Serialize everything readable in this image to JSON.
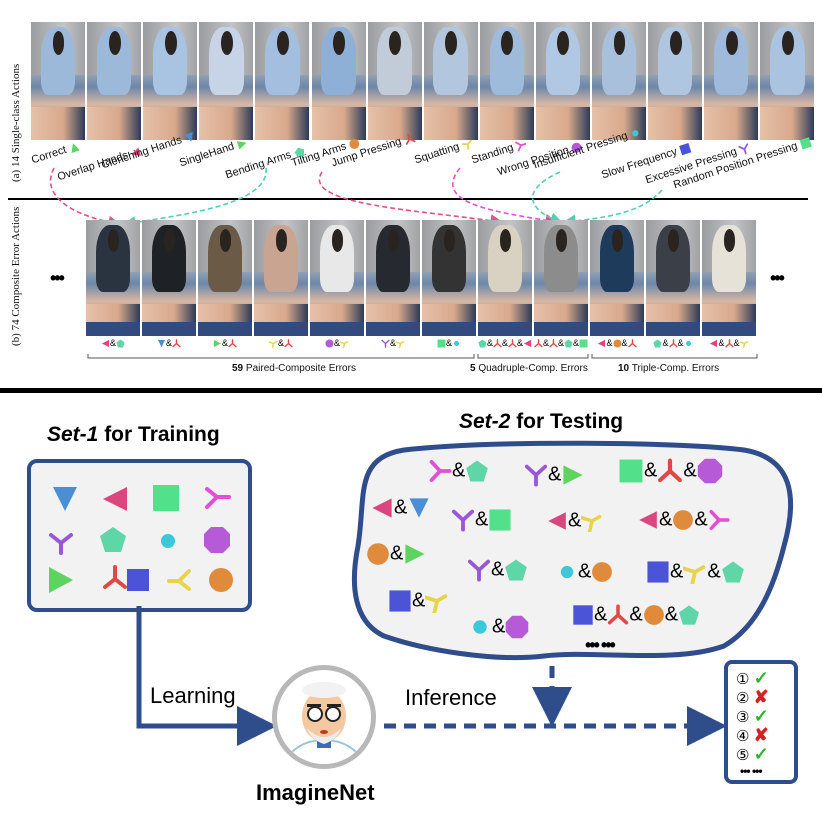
{
  "panel_a": {
    "label": "(a) 14 Single-class Actions",
    "classes": [
      {
        "label": "Correct",
        "icon": "green-triangle-up-icon"
      },
      {
        "label": "Overlap Hands",
        "icon": "pink-triangle-left-icon"
      },
      {
        "label": "Clenching Hands",
        "icon": "blue-triangle-down-icon"
      },
      {
        "label": "SingleHand",
        "icon": "green-triangle-right-icon"
      },
      {
        "label": "Bending Arms",
        "icon": "teal-pentagon-icon"
      },
      {
        "label": "Tilting Arms",
        "icon": "orange-circle-icon"
      },
      {
        "label": "Jump Pressing",
        "icon": "red-tripod-icon"
      },
      {
        "label": "Squatting",
        "icon": "yellow-tripod-icon"
      },
      {
        "label": "Standing",
        "icon": "magenta-tripod-icon"
      },
      {
        "label": "Wrong Position",
        "icon": "purple-circle-icon"
      },
      {
        "label": "Insufficient Pressing",
        "icon": "cyan-dot-icon"
      },
      {
        "label": "Slow Frequency",
        "icon": "blue-square-icon"
      },
      {
        "label": "Excessive Pressing",
        "icon": "violet-tripod-icon"
      },
      {
        "label": "Random Position Pressing",
        "icon": "green-square-icon"
      }
    ]
  },
  "panel_b": {
    "label": "(b) 74 Composite Error Actions",
    "ellipsis_left": "•••",
    "ellipsis_right": "•••",
    "amp": "&",
    "groups": [
      {
        "count": "59",
        "label": "Paired-Composite Errors"
      },
      {
        "count": "5",
        "label": "Quadruple-Comp. Errors"
      },
      {
        "count": "10",
        "label": "Triple-Comp. Errors"
      }
    ]
  },
  "set1": {
    "name": "Set-1",
    "rest": " for Training"
  },
  "set2": {
    "name": "Set-2",
    "rest": " for Testing",
    "amp": "&",
    "more": "••• •••"
  },
  "learning": "Learning",
  "inference": "Inference",
  "model_name": "ImagineNet",
  "results": [
    {
      "num": "①",
      "mark": "✓"
    },
    {
      "num": "②",
      "mark": "✘"
    },
    {
      "num": "③",
      "mark": "✓"
    },
    {
      "num": "④",
      "mark": "✘"
    },
    {
      "num": "⑤",
      "mark": "✓"
    }
  ],
  "results_more": "••• •••",
  "colors": {
    "border": "#2f4c8b",
    "green": "#5fd35f",
    "pink": "#d9477e",
    "blue": "#4a8fd6",
    "mint": "#52e08a",
    "magenta": "#e24fd6",
    "violet": "#9a56d8",
    "teal": "#5fd6a8",
    "cyan": "#3cc8d8",
    "purple": "#b75ad8",
    "orange": "#e08a3c",
    "red": "#e04848",
    "navy": "#4b54d6",
    "yellow": "#e6d44a",
    "check": "#2bb52b",
    "cross": "#d42222"
  }
}
